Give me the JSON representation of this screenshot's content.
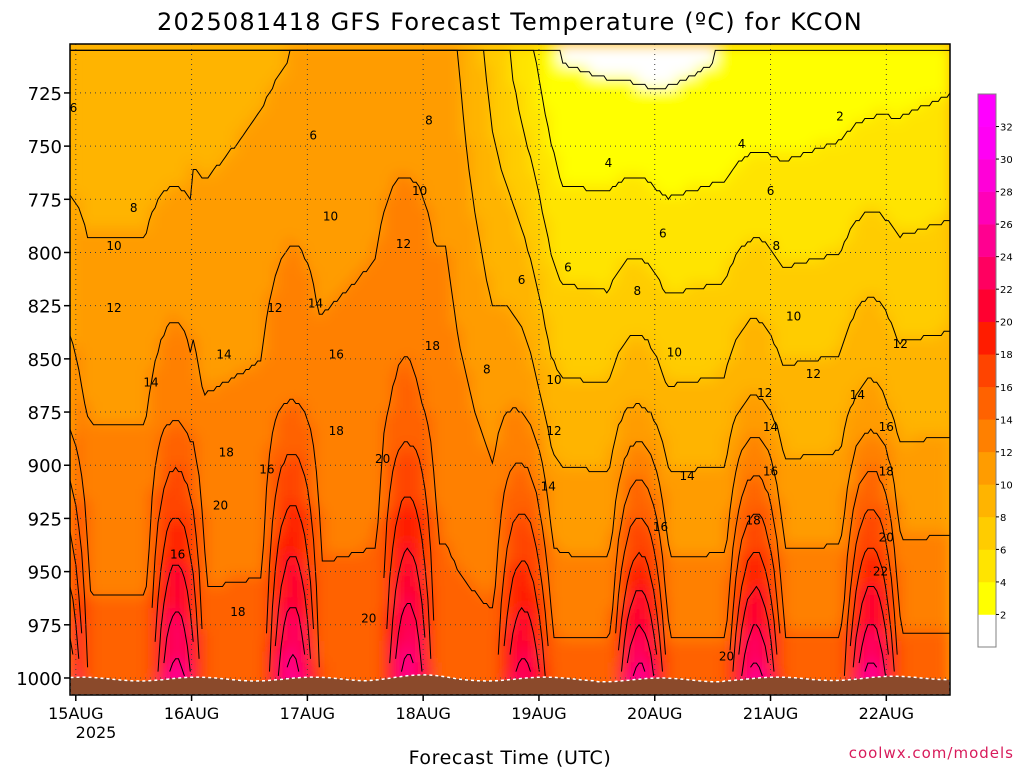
{
  "title": "2025081418 GFS Forecast Temperature (ºC) for KCON",
  "xlabel": "Forecast Time (UTC)",
  "credit": "coolwx.com/models",
  "chart_data": {
    "type": "heatmap",
    "title": "2025081418 GFS Forecast Temperature (ºC) for KCON",
    "xlabel": "Forecast Time (UTC)",
    "ylabel": "",
    "y_axis": "pressure (hPa), inverted",
    "x_ticks": [
      "15AUG",
      "16AUG",
      "17AUG",
      "18AUG",
      "19AUG",
      "20AUG",
      "21AUG",
      "22AUG"
    ],
    "x_year_label": "2025",
    "y_ticks": [
      725,
      750,
      775,
      800,
      825,
      850,
      875,
      900,
      925,
      950,
      975,
      1000
    ],
    "ylim": [
      1008,
      702
    ],
    "x_range_days": [
      -0.05,
      7.55
    ],
    "grid": true,
    "colorbar": {
      "levels": [
        2,
        4,
        6,
        8,
        10,
        12,
        14,
        16,
        18,
        20,
        22,
        24,
        26,
        28,
        30,
        32
      ],
      "colors": [
        "#ffffff",
        "#ffff00",
        "#ffe400",
        "#ffcc00",
        "#ffb400",
        "#ff9c00",
        "#ff8000",
        "#ff6200",
        "#ff4400",
        "#ff1c00",
        "#ff0030",
        "#ff0060",
        "#ff0090",
        "#ff00b8",
        "#ff00d8",
        "#ff00f4",
        "#ff00ff"
      ]
    },
    "contour_labels": [
      {
        "day": -0.02,
        "p": 732,
        "v": 6
      },
      {
        "day": 0.5,
        "p": 779,
        "v": 8
      },
      {
        "day": 0.33,
        "p": 797,
        "v": 10
      },
      {
        "day": 0.33,
        "p": 826,
        "v": 12
      },
      {
        "day": 0.65,
        "p": 861,
        "v": 14
      },
      {
        "day": 1.28,
        "p": 848,
        "v": 14
      },
      {
        "day": 1.72,
        "p": 826,
        "v": 12
      },
      {
        "day": 2.05,
        "p": 745,
        "v": 6
      },
      {
        "day": 2.07,
        "p": 824,
        "v": 14
      },
      {
        "day": 1.3,
        "p": 894,
        "v": 18
      },
      {
        "day": 1.25,
        "p": 919,
        "v": 20
      },
      {
        "day": 1.65,
        "p": 902,
        "v": 16
      },
      {
        "day": 0.88,
        "p": 942,
        "v": 16
      },
      {
        "day": 1.4,
        "p": 969,
        "v": 18
      },
      {
        "day": 2.2,
        "p": 783,
        "v": 10
      },
      {
        "day": 2.25,
        "p": 848,
        "v": 16
      },
      {
        "day": 2.25,
        "p": 884,
        "v": 18
      },
      {
        "day": 2.65,
        "p": 897,
        "v": 20
      },
      {
        "day": 2.53,
        "p": 972,
        "v": 20
      },
      {
        "day": 3.05,
        "p": 738,
        "v": 8
      },
      {
        "day": 2.97,
        "p": 771,
        "v": 10
      },
      {
        "day": 2.83,
        "p": 796,
        "v": 12
      },
      {
        "day": 3.08,
        "p": 844,
        "v": 18
      },
      {
        "day": 3.55,
        "p": 855,
        "v": 8
      },
      {
        "day": 3.85,
        "p": 813,
        "v": 6
      },
      {
        "day": 4.25,
        "p": 807,
        "v": 6
      },
      {
        "day": 4.13,
        "p": 860,
        "v": 10
      },
      {
        "day": 4.13,
        "p": 884,
        "v": 12
      },
      {
        "day": 4.08,
        "p": 910,
        "v": 14
      },
      {
        "day": 4.6,
        "p": 758,
        "v": 4
      },
      {
        "day": 5.07,
        "p": 791,
        "v": 6
      },
      {
        "day": 4.85,
        "p": 818,
        "v": 8
      },
      {
        "day": 5.17,
        "p": 847,
        "v": 10
      },
      {
        "day": 5.28,
        "p": 905,
        "v": 14
      },
      {
        "day": 5.05,
        "p": 929,
        "v": 16
      },
      {
        "day": 5.75,
        "p": 749,
        "v": 4
      },
      {
        "day": 6.0,
        "p": 771,
        "v": 6
      },
      {
        "day": 6.2,
        "p": 830,
        "v": 10
      },
      {
        "day": 6.05,
        "p": 797,
        "v": 8
      },
      {
        "day": 6.37,
        "p": 857,
        "v": 12
      },
      {
        "day": 5.95,
        "p": 866,
        "v": 12
      },
      {
        "day": 6.0,
        "p": 882,
        "v": 14
      },
      {
        "day": 6.0,
        "p": 903,
        "v": 16
      },
      {
        "day": 5.85,
        "p": 926,
        "v": 18
      },
      {
        "day": 6.6,
        "p": 736,
        "v": 2
      },
      {
        "day": 6.75,
        "p": 867,
        "v": 14
      },
      {
        "day": 7.12,
        "p": 843,
        "v": 12
      },
      {
        "day": 7.0,
        "p": 882,
        "v": 16
      },
      {
        "day": 7.0,
        "p": 903,
        "v": 18
      },
      {
        "day": 7.0,
        "p": 934,
        "v": 20
      },
      {
        "day": 6.95,
        "p": 950,
        "v": 22
      },
      {
        "day": 5.62,
        "p": 990,
        "v": 20
      }
    ]
  }
}
